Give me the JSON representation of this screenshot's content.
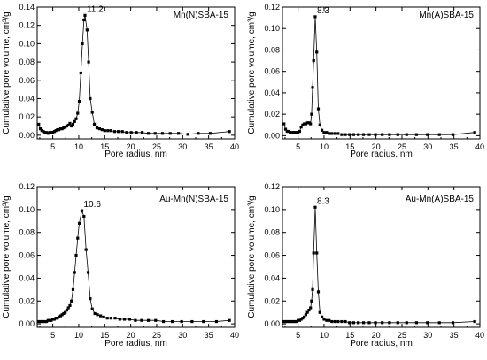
{
  "chart_data": [
    {
      "type": "line",
      "title": "Mn(N)SBA-15",
      "xlabel": "Pore radius, nm",
      "ylabel": "Cumulative pore volume, cm³/g",
      "xlim": [
        2,
        40
      ],
      "ylim": [
        -0.004,
        0.14
      ],
      "xticks": [
        5,
        10,
        15,
        20,
        25,
        30,
        35,
        40
      ],
      "yticks": [
        0.0,
        0.02,
        0.04,
        0.06,
        0.08,
        0.1,
        0.12,
        0.14
      ],
      "ytick_labels": [
        "0.00",
        "0.02",
        "0.04",
        "0.06",
        "0.08",
        "0.10",
        "0.12",
        "0.14"
      ],
      "peak_label": "11.2",
      "peak_x": 11.2,
      "peak_y": 0.131,
      "series": [
        {
          "x": [
            2.3,
            2.6,
            2.9,
            3.2,
            3.5,
            3.8,
            4.1,
            4.4,
            4.7,
            5.0,
            5.3,
            5.6,
            5.9,
            6.2,
            6.5,
            6.8,
            7.1,
            7.4,
            7.7,
            8.0,
            8.3,
            8.6,
            8.9,
            9.2,
            9.5,
            9.8,
            10.1,
            10.4,
            10.7,
            11.0,
            11.2,
            11.6,
            11.9,
            12.2,
            12.6,
            13.0,
            13.5,
            14.0,
            14.5,
            15.0,
            15.6,
            16.2,
            16.9,
            17.6,
            18.4,
            19.2,
            20.1,
            21.1,
            22.2,
            23.4,
            24.7,
            26.1,
            27.6,
            29.2,
            31.0,
            33.0,
            35.3,
            39.0
          ],
          "y": [
            0.012,
            0.007,
            0.005,
            0.004,
            0.003,
            0.003,
            0.002,
            0.003,
            0.003,
            0.003,
            0.004,
            0.005,
            0.006,
            0.006,
            0.007,
            0.007,
            0.008,
            0.009,
            0.01,
            0.011,
            0.013,
            0.01,
            0.012,
            0.015,
            0.018,
            0.024,
            0.037,
            0.068,
            0.1,
            0.126,
            0.131,
            0.115,
            0.08,
            0.04,
            0.025,
            0.012,
            0.008,
            0.007,
            0.006,
            0.005,
            0.005,
            0.005,
            0.004,
            0.004,
            0.004,
            0.003,
            0.003,
            0.003,
            0.003,
            0.002,
            0.002,
            0.002,
            0.002,
            0.002,
            0.001,
            0.002,
            0.002,
            0.004
          ]
        }
      ]
    },
    {
      "type": "line",
      "title": "Mn(A)SBA-15",
      "xlabel": "Pore radius, nm",
      "ylabel": "Cumulative pore volume, cm³/g",
      "xlim": [
        2,
        40
      ],
      "ylim": [
        -0.003,
        0.12
      ],
      "xticks": [
        5,
        10,
        15,
        20,
        25,
        30,
        35,
        40
      ],
      "yticks": [
        0.0,
        0.02,
        0.04,
        0.06,
        0.08,
        0.1,
        0.12
      ],
      "ytick_labels": [
        "0.00",
        "0.02",
        "0.04",
        "0.06",
        "0.08",
        "0.10",
        "0.12"
      ],
      "peak_label": "8.3",
      "peak_x": 8.3,
      "peak_y": 0.111,
      "series": [
        {
          "x": [
            2.3,
            2.6,
            2.9,
            3.2,
            3.5,
            3.8,
            4.1,
            4.4,
            4.7,
            5.0,
            5.3,
            5.6,
            5.9,
            6.2,
            6.5,
            6.8,
            7.1,
            7.4,
            7.6,
            7.8,
            8.0,
            8.3,
            8.6,
            8.9,
            9.2,
            9.6,
            10.0,
            10.5,
            11.0,
            11.5,
            12.1,
            12.7,
            13.4,
            14.1,
            14.9,
            15.7,
            16.6,
            17.6,
            18.7,
            19.9,
            21.2,
            22.6,
            24.2,
            25.9,
            27.8,
            29.9,
            32.2,
            34.8,
            39.0
          ],
          "y": [
            0.011,
            0.006,
            0.004,
            0.004,
            0.003,
            0.003,
            0.003,
            0.003,
            0.003,
            0.003,
            0.004,
            0.008,
            0.01,
            0.011,
            0.011,
            0.012,
            0.012,
            0.011,
            0.02,
            0.045,
            0.07,
            0.111,
            0.078,
            0.025,
            0.01,
            0.005,
            0.003,
            0.003,
            0.002,
            0.002,
            0.002,
            0.002,
            0.001,
            0.001,
            0.001,
            0.001,
            0.001,
            0.001,
            0.001,
            0.001,
            0.001,
            0.001,
            0.001,
            0.001,
            0.001,
            0.001,
            0.001,
            0.001,
            0.003
          ]
        }
      ]
    },
    {
      "type": "line",
      "title": "Au-Mn(N)SBA-15",
      "xlabel": "Pore radius, nm",
      "ylabel": "Cumulative pore volume, cm³/g",
      "xlim": [
        2,
        40
      ],
      "ylim": [
        -0.003,
        0.12
      ],
      "xticks": [
        5,
        10,
        15,
        20,
        25,
        30,
        35,
        40
      ],
      "yticks": [
        0.0,
        0.02,
        0.04,
        0.06,
        0.08,
        0.1,
        0.12
      ],
      "ytick_labels": [
        "0.00",
        "0.02",
        "0.04",
        "0.06",
        "0.08",
        "0.10",
        "0.12"
      ],
      "peak_label": "10.6",
      "peak_x": 10.6,
      "peak_y": 0.099,
      "series": [
        {
          "x": [
            2.3,
            2.6,
            2.9,
            3.2,
            3.5,
            3.8,
            4.1,
            4.4,
            4.7,
            5.0,
            5.3,
            5.6,
            5.9,
            6.2,
            6.5,
            6.8,
            7.1,
            7.4,
            7.7,
            8.0,
            8.3,
            8.6,
            8.9,
            9.2,
            9.5,
            9.8,
            10.1,
            10.6,
            11.0,
            11.4,
            11.8,
            12.2,
            12.6,
            13.1,
            13.6,
            14.2,
            14.8,
            15.5,
            16.2,
            17.0,
            17.9,
            18.8,
            19.8,
            20.9,
            22.1,
            23.4,
            24.8,
            26.3,
            28.0,
            29.8,
            31.8,
            34.0,
            36.5,
            39.0
          ],
          "y": [
            0.002,
            0.002,
            0.002,
            0.002,
            0.002,
            0.002,
            0.003,
            0.003,
            0.003,
            0.004,
            0.004,
            0.005,
            0.005,
            0.006,
            0.007,
            0.008,
            0.009,
            0.01,
            0.012,
            0.014,
            0.016,
            0.02,
            0.03,
            0.045,
            0.06,
            0.075,
            0.088,
            0.099,
            0.094,
            0.065,
            0.045,
            0.022,
            0.013,
            0.009,
            0.008,
            0.007,
            0.006,
            0.005,
            0.005,
            0.005,
            0.004,
            0.004,
            0.004,
            0.003,
            0.003,
            0.003,
            0.003,
            0.002,
            0.002,
            0.002,
            0.002,
            0.002,
            0.002,
            0.003
          ]
        }
      ]
    },
    {
      "type": "line",
      "title": "Au-Mn(A)SBA-15",
      "xlabel": "Pore radius, nm",
      "ylabel": "Cumulative pore volume, cm³/g",
      "xlim": [
        2,
        40
      ],
      "ylim": [
        -0.003,
        0.12
      ],
      "xticks": [
        5,
        10,
        15,
        20,
        25,
        30,
        35,
        40
      ],
      "yticks": [
        0.0,
        0.02,
        0.04,
        0.06,
        0.08,
        0.1,
        0.12
      ],
      "ytick_labels": [
        "0.00",
        "0.02",
        "0.04",
        "0.06",
        "0.08",
        "0.10",
        "0.12"
      ],
      "peak_label": "8.3",
      "peak_x": 8.3,
      "peak_y": 0.102,
      "series": [
        {
          "x": [
            2.3,
            2.6,
            2.9,
            3.2,
            3.5,
            3.8,
            4.1,
            4.4,
            4.7,
            5.0,
            5.3,
            5.6,
            5.9,
            6.2,
            6.5,
            6.8,
            7.1,
            7.4,
            7.6,
            7.8,
            8.0,
            8.3,
            8.6,
            8.9,
            9.2,
            9.6,
            10.0,
            10.5,
            11.0,
            11.5,
            12.1,
            12.7,
            13.4,
            14.1,
            14.9,
            15.7,
            16.6,
            17.6,
            18.7,
            19.9,
            21.2,
            22.6,
            24.2,
            25.9,
            27.8,
            29.9,
            32.2,
            34.8,
            39.0
          ],
          "y": [
            0.002,
            0.002,
            0.002,
            0.002,
            0.002,
            0.002,
            0.002,
            0.002,
            0.002,
            0.003,
            0.003,
            0.004,
            0.005,
            0.006,
            0.008,
            0.01,
            0.012,
            0.014,
            0.02,
            0.03,
            0.062,
            0.102,
            0.062,
            0.028,
            0.01,
            0.006,
            0.004,
            0.003,
            0.003,
            0.002,
            0.002,
            0.002,
            0.002,
            0.002,
            0.001,
            0.001,
            0.001,
            0.001,
            0.001,
            0.001,
            0.001,
            0.001,
            0.001,
            0.001,
            0.001,
            0.001,
            0.001,
            0.001,
            0.002
          ]
        }
      ]
    }
  ]
}
